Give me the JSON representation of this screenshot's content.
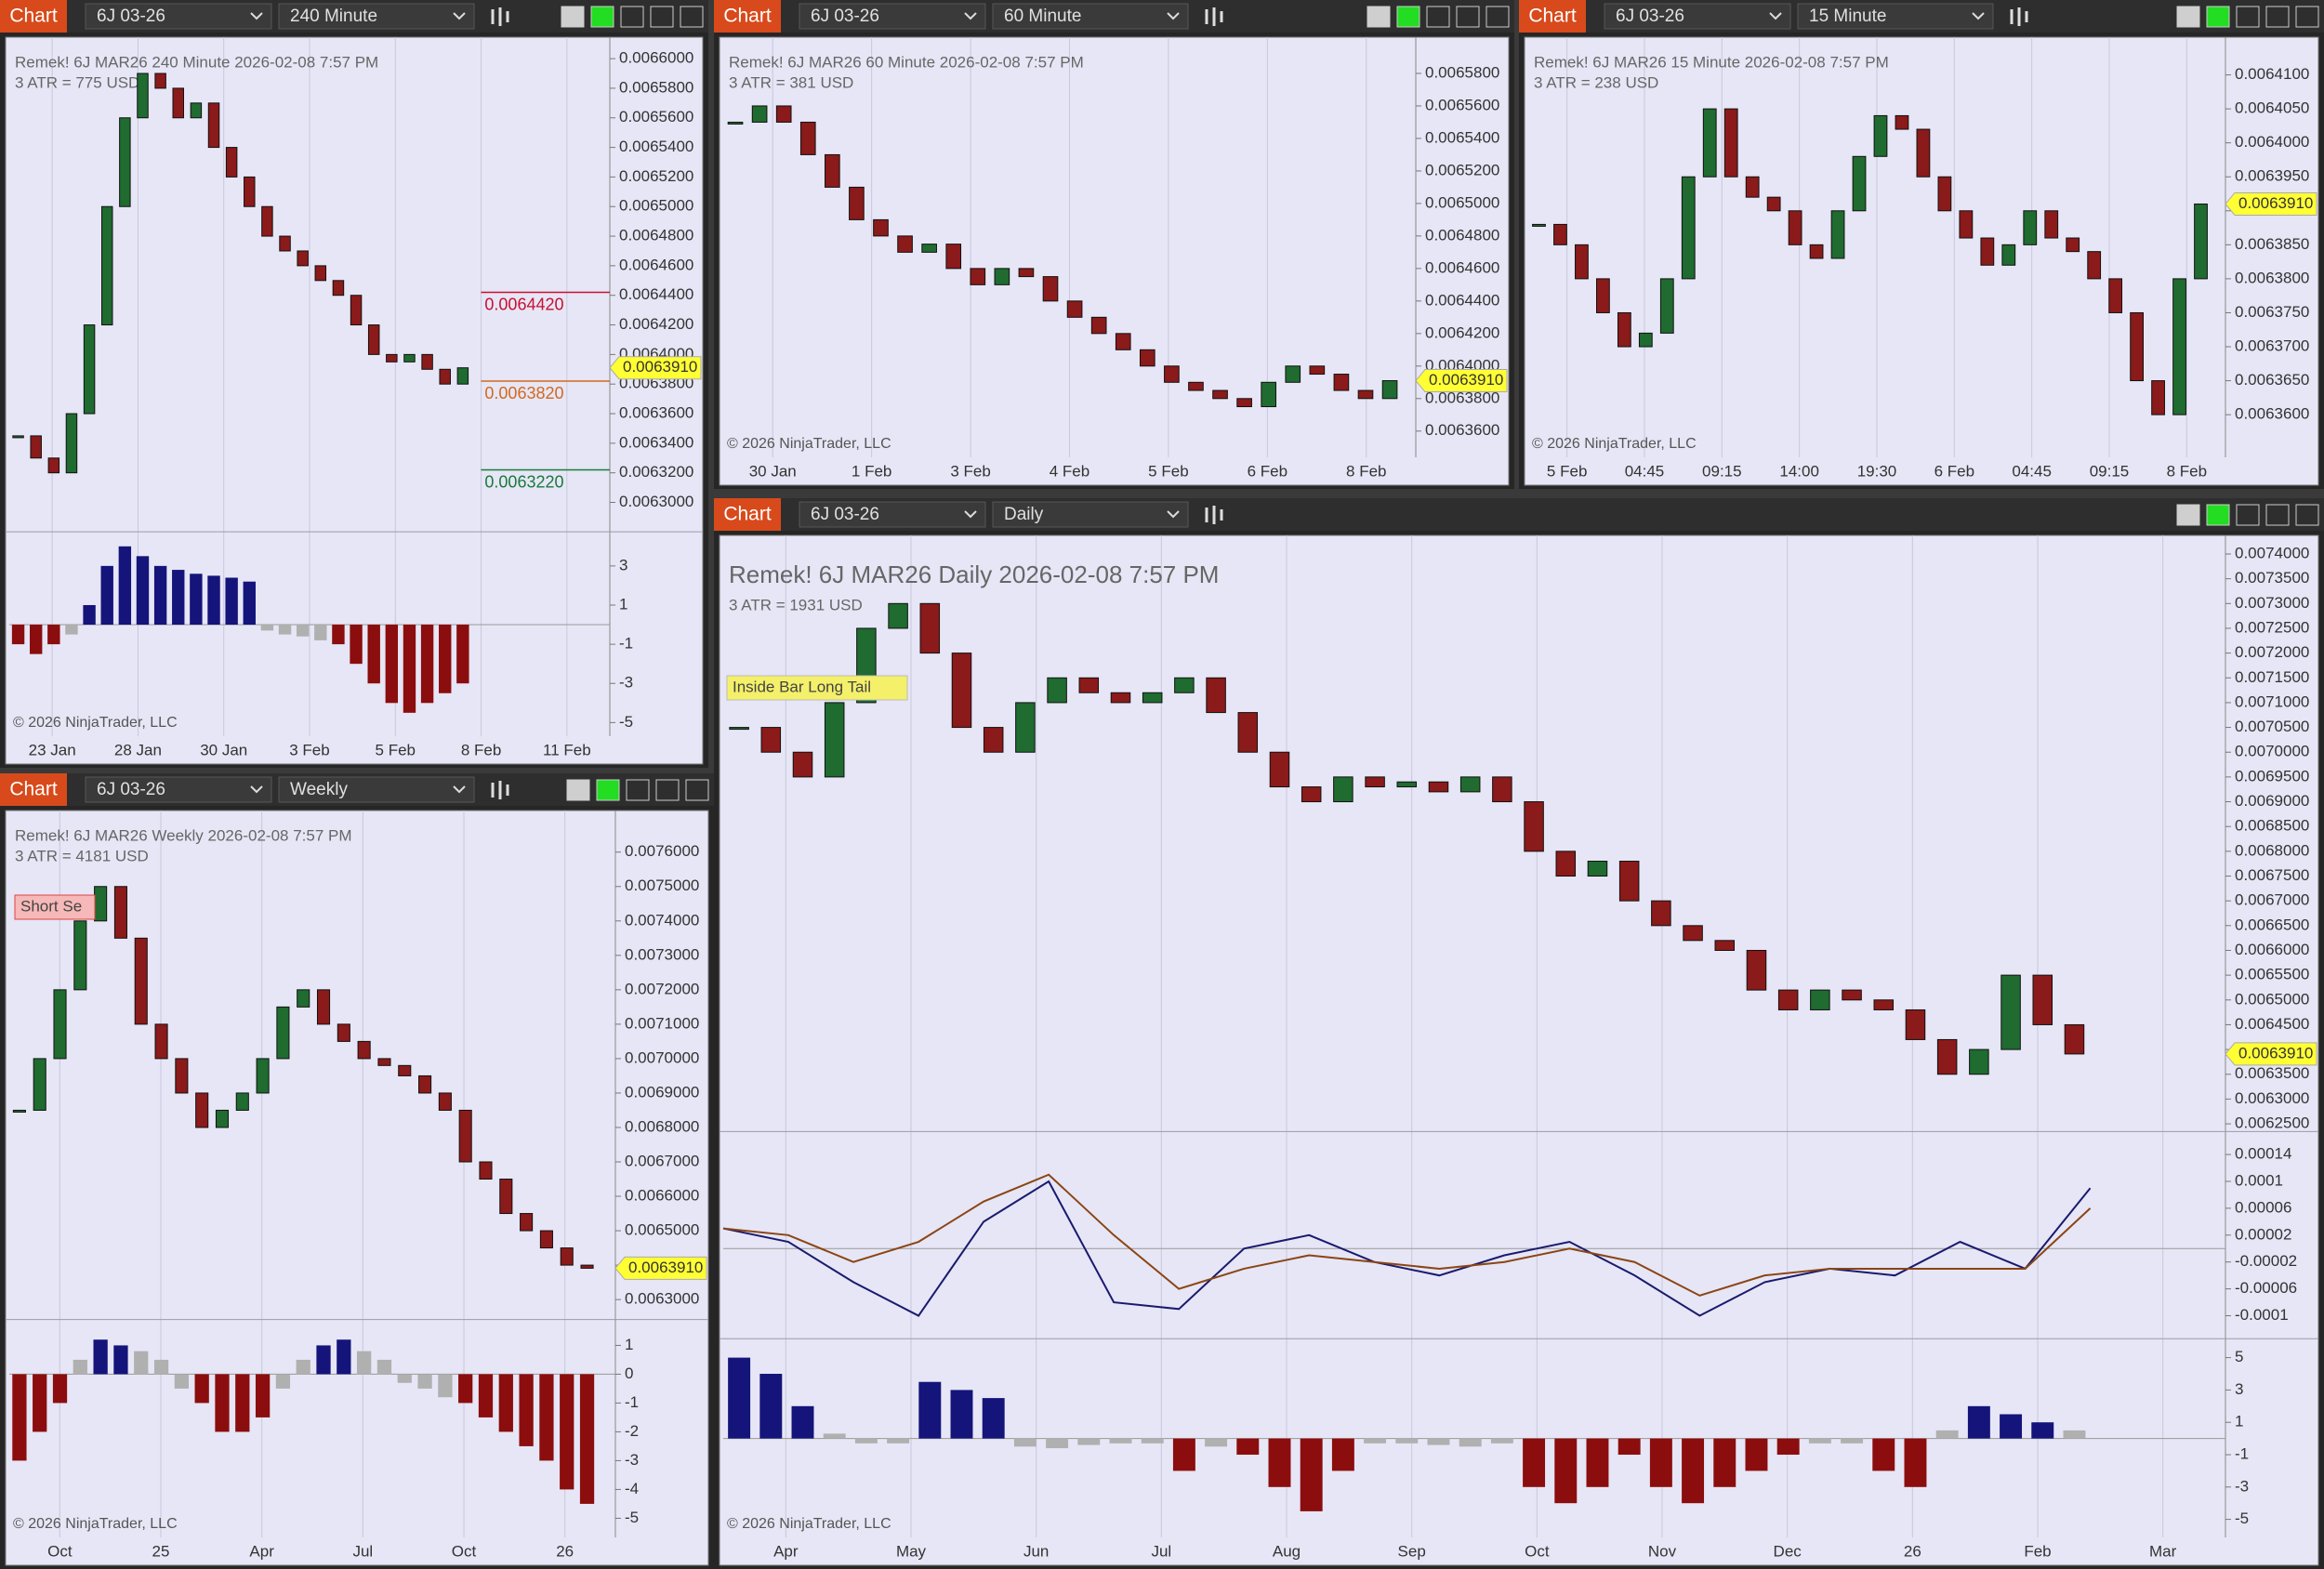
{
  "windows": [
    {
      "tab": "Chart",
      "instrument": "6J 03-26",
      "period": "240 Minute",
      "header": "Remek!  6J MAR26  240 Minute  2026-02-08 7:57 PM",
      "atr": "3 ATR = 775 USD",
      "price_axis": {
        "lim": [
          0.006282,
          0.006612
        ],
        "ticks": [
          {
            "value": 0.0066,
            "label": "0.0066000"
          },
          {
            "value": 0.00658,
            "label": "0.0065800"
          },
          {
            "value": 0.00656,
            "label": "0.0065600"
          },
          {
            "value": 0.00654,
            "label": "0.0065400"
          },
          {
            "value": 0.00652,
            "label": "0.0065200"
          },
          {
            "value": 0.0065,
            "label": "0.0065000"
          },
          {
            "value": 0.00648,
            "label": "0.0064800"
          },
          {
            "value": 0.00646,
            "label": "0.0064600"
          },
          {
            "value": 0.00644,
            "label": "0.0064400"
          },
          {
            "value": 0.00642,
            "label": "0.0064200"
          },
          {
            "value": 0.0064,
            "label": "0.0064000"
          },
          {
            "value": 0.00638,
            "label": "0.0063800"
          },
          {
            "value": 0.00636,
            "label": "0.0063600"
          },
          {
            "value": 0.00634,
            "label": "0.0063400"
          },
          {
            "value": 0.00632,
            "label": "0.0063200"
          },
          {
            "value": 0.0063,
            "label": "0.0063000"
          }
        ]
      },
      "closes": [
        0.006345,
        0.00633,
        0.00632,
        0.00636,
        0.00642,
        0.0065,
        0.00656,
        0.00659,
        0.00658,
        0.00656,
        0.00657,
        0.00654,
        0.00652,
        0.0065,
        0.00648,
        0.00647,
        0.00646,
        0.00645,
        0.00644,
        0.00642,
        0.0064,
        0.006395,
        0.0064,
        0.00639,
        0.00638,
        0.006391
      ],
      "last": {
        "value": 0.006391,
        "label": "0.0063910"
      },
      "levels": [
        {
          "value": 0.006442,
          "label": "0.0064420",
          "color": "#c8102e"
        },
        {
          "value": 0.006382,
          "label": "0.0063820",
          "color": "#d2691e"
        },
        {
          "value": 0.006322,
          "label": "0.0063220",
          "color": "#1a7a3a"
        }
      ],
      "x_labels": [
        "23 Jan",
        "28 Jan",
        "30 Jan",
        "3 Feb",
        "5 Feb",
        "8 Feb",
        "11 Feb"
      ],
      "copyright": "© 2026 NinjaTrader, LLC",
      "panels": [
        {
          "lim": [
            -5.6,
            4.6
          ],
          "ticks": [
            3,
            1,
            -1,
            -3,
            -5
          ],
          "hist": [
            -1,
            -1.5,
            -1,
            -0.5,
            1,
            3,
            4,
            3.5,
            3,
            2.8,
            2.6,
            2.5,
            2.4,
            2.2,
            -0.3,
            -0.5,
            -0.6,
            -0.8,
            -1,
            -2,
            -3,
            -4,
            -4.5,
            -4,
            -3.5,
            -3
          ]
        }
      ]
    },
    {
      "tab": "Chart",
      "instrument": "6J 03-26",
      "period": "60 Minute",
      "header": "Remek!  6J MAR26  60 Minute  2026-02-08 7:57 PM",
      "atr": "3 ATR = 381 USD",
      "price_axis": {
        "lim": [
          0.006345,
          0.0066
        ],
        "ticks": [
          {
            "value": 0.00658,
            "label": "0.0065800"
          },
          {
            "value": 0.00656,
            "label": "0.0065600"
          },
          {
            "value": 0.00654,
            "label": "0.0065400"
          },
          {
            "value": 0.00652,
            "label": "0.0065200"
          },
          {
            "value": 0.0065,
            "label": "0.0065000"
          },
          {
            "value": 0.00648,
            "label": "0.0064800"
          },
          {
            "value": 0.00646,
            "label": "0.0064600"
          },
          {
            "value": 0.00644,
            "label": "0.0064400"
          },
          {
            "value": 0.00642,
            "label": "0.0064200"
          },
          {
            "value": 0.0064,
            "label": "0.0064000"
          },
          {
            "value": 0.00638,
            "label": "0.0063800"
          },
          {
            "value": 0.00636,
            "label": "0.0063600"
          }
        ]
      },
      "closes": [
        0.00655,
        0.00656,
        0.00655,
        0.00653,
        0.00651,
        0.00649,
        0.00648,
        0.00647,
        0.006475,
        0.00646,
        0.00645,
        0.00646,
        0.006455,
        0.00644,
        0.00643,
        0.00642,
        0.00641,
        0.0064,
        0.00639,
        0.006385,
        0.00638,
        0.006375,
        0.00639,
        0.0064,
        0.006395,
        0.006385,
        0.00638,
        0.006391
      ],
      "last": {
        "value": 0.006391,
        "label": "0.0063910"
      },
      "x_labels": [
        "30 Jan",
        "1 Feb",
        "3 Feb",
        "4 Feb",
        "5 Feb",
        "6 Feb",
        "8 Feb"
      ],
      "copyright": "© 2026 NinjaTrader, LLC"
    },
    {
      "tab": "Chart",
      "instrument": "6J 03-26",
      "period": "15 Minute",
      "header": "Remek!  6J MAR26  15 Minute  2026-02-08 7:57 PM",
      "atr": "3 ATR = 238 USD",
      "price_axis": {
        "lim": [
          0.006354,
          0.006415
        ],
        "ticks": [
          {
            "value": 0.00641,
            "label": "0.0064100"
          },
          {
            "value": 0.006405,
            "label": "0.0064050"
          },
          {
            "value": 0.0064,
            "label": "0.0064000"
          },
          {
            "value": 0.006395,
            "label": "0.0063950"
          },
          {
            "value": 0.00639,
            "label": "0.0063900"
          },
          {
            "value": 0.006385,
            "label": "0.0063850"
          },
          {
            "value": 0.00638,
            "label": "0.0063800"
          },
          {
            "value": 0.006375,
            "label": "0.0063750"
          },
          {
            "value": 0.00637,
            "label": "0.0063700"
          },
          {
            "value": 0.006365,
            "label": "0.0063650"
          },
          {
            "value": 0.00636,
            "label": "0.0063600"
          }
        ]
      },
      "closes": [
        0.006388,
        0.006385,
        0.00638,
        0.006375,
        0.00637,
        0.006372,
        0.00638,
        0.006395,
        0.006405,
        0.006395,
        0.006392,
        0.00639,
        0.006385,
        0.006383,
        0.00639,
        0.006398,
        0.006404,
        0.006402,
        0.006395,
        0.00639,
        0.006386,
        0.006382,
        0.006385,
        0.00639,
        0.006386,
        0.006384,
        0.00638,
        0.006375,
        0.006365,
        0.00636,
        0.00638,
        0.006391
      ],
      "last": {
        "value": 0.006391,
        "label": "0.0063910"
      },
      "x_labels": [
        "5 Feb",
        "04:45",
        "09:15",
        "14:00",
        "19:30",
        "6 Feb",
        "04:45",
        "09:15",
        "8 Feb"
      ],
      "copyright": "© 2026 NinjaTrader, LLC"
    },
    {
      "tab": "Chart",
      "instrument": "6J 03-26",
      "period": "Weekly",
      "header": "Remek!  6J MAR26  Weekly  2026-02-08 7:57 PM",
      "atr": "3 ATR = 4181 USD",
      "tag": "Short Se",
      "price_axis": {
        "lim": [
          0.00625,
          0.00771
        ],
        "ticks": [
          {
            "value": 0.0076,
            "label": "0.0076000"
          },
          {
            "value": 0.0075,
            "label": "0.0075000"
          },
          {
            "value": 0.0074,
            "label": "0.0074000"
          },
          {
            "value": 0.0073,
            "label": "0.0073000"
          },
          {
            "value": 0.0072,
            "label": "0.0072000"
          },
          {
            "value": 0.0071,
            "label": "0.0071000"
          },
          {
            "value": 0.007,
            "label": "0.0070000"
          },
          {
            "value": 0.0069,
            "label": "0.0069000"
          },
          {
            "value": 0.0068,
            "label": "0.0068000"
          },
          {
            "value": 0.0067,
            "label": "0.0067000"
          },
          {
            "value": 0.0066,
            "label": "0.0066000"
          },
          {
            "value": 0.0065,
            "label": "0.0065000"
          },
          {
            "value": 0.0064,
            "label": "0.0064000"
          },
          {
            "value": 0.0063,
            "label": "0.0063000"
          }
        ]
      },
      "closes": [
        0.00685,
        0.007,
        0.0072,
        0.0074,
        0.0075,
        0.00735,
        0.0071,
        0.007,
        0.0069,
        0.0068,
        0.00685,
        0.0069,
        0.007,
        0.00715,
        0.0072,
        0.0071,
        0.00705,
        0.007,
        0.00698,
        0.00695,
        0.0069,
        0.00685,
        0.0067,
        0.00665,
        0.00655,
        0.0065,
        0.00645,
        0.0064,
        0.006391
      ],
      "last": {
        "value": 0.006391,
        "label": "0.0063910"
      },
      "x_labels": [
        "Oct",
        "25",
        "Apr",
        "Jul",
        "Oct",
        "26"
      ],
      "copyright": "© 2026 NinjaTrader, LLC",
      "panels": [
        {
          "lim": [
            -5.6,
            1.8
          ],
          "ticks": [
            1,
            0,
            -1,
            -2,
            -3,
            -4,
            -5
          ],
          "hist": [
            -3,
            -2,
            -1,
            0.5,
            1.2,
            1,
            0.8,
            0.5,
            -0.5,
            -1,
            -2,
            -2,
            -1.5,
            -0.5,
            0.5,
            1,
            1.2,
            0.8,
            0.5,
            -0.3,
            -0.5,
            -0.8,
            -1,
            -1.5,
            -2,
            -2.5,
            -3,
            -4,
            -4.5
          ]
        }
      ]
    },
    {
      "tab": "Chart",
      "instrument": "6J 03-26",
      "period": "Daily",
      "header": "Remek!  6J MAR26  Daily  2026-02-08 7:57 PM",
      "atr": "3 ATR = 1931 USD",
      "tag": "Inside Bar Long Tail",
      "price_axis": {
        "lim": [
          0.00624,
          0.00743
        ],
        "ticks": [
          {
            "value": 0.0074,
            "label": "0.0074000"
          },
          {
            "value": 0.00735,
            "label": "0.0073500"
          },
          {
            "value": 0.0073,
            "label": "0.0073000"
          },
          {
            "value": 0.00725,
            "label": "0.0072500"
          },
          {
            "value": 0.0072,
            "label": "0.0072000"
          },
          {
            "value": 0.00715,
            "label": "0.0071500"
          },
          {
            "value": 0.0071,
            "label": "0.0071000"
          },
          {
            "value": 0.00705,
            "label": "0.0070500"
          },
          {
            "value": 0.007,
            "label": "0.0070000"
          },
          {
            "value": 0.00695,
            "label": "0.0069500"
          },
          {
            "value": 0.0069,
            "label": "0.0069000"
          },
          {
            "value": 0.00685,
            "label": "0.0068500"
          },
          {
            "value": 0.0068,
            "label": "0.0068000"
          },
          {
            "value": 0.00675,
            "label": "0.0067500"
          },
          {
            "value": 0.0067,
            "label": "0.0067000"
          },
          {
            "value": 0.00665,
            "label": "0.0066500"
          },
          {
            "value": 0.0066,
            "label": "0.0066000"
          },
          {
            "value": 0.00655,
            "label": "0.0065500"
          },
          {
            "value": 0.0065,
            "label": "0.0065000"
          },
          {
            "value": 0.00645,
            "label": "0.0064500"
          },
          {
            "value": 0.0064,
            "label": "0.0064000"
          },
          {
            "value": 0.00635,
            "label": "0.0063500"
          },
          {
            "value": 0.0063,
            "label": "0.0063000"
          },
          {
            "value": 0.00625,
            "label": "0.0062500"
          }
        ]
      },
      "closes": [
        0.00705,
        0.007,
        0.00695,
        0.0071,
        0.00725,
        0.0073,
        0.0072,
        0.00705,
        0.007,
        0.0071,
        0.00715,
        0.00712,
        0.0071,
        0.00712,
        0.00715,
        0.00708,
        0.007,
        0.00693,
        0.0069,
        0.00695,
        0.00693,
        0.00694,
        0.00692,
        0.00695,
        0.0069,
        0.0068,
        0.00675,
        0.00678,
        0.0067,
        0.00665,
        0.00662,
        0.0066,
        0.00652,
        0.00648,
        0.00652,
        0.0065,
        0.00648,
        0.00642,
        0.00635,
        0.0064,
        0.00655,
        0.00645,
        0.006391
      ],
      "last": {
        "value": 0.006391,
        "label": "0.0063910"
      },
      "x_labels": [
        "Apr",
        "May",
        "Jun",
        "Jul",
        "Aug",
        "Sep",
        "Oct",
        "Nov",
        "Dec",
        "26",
        "Feb",
        "Mar"
      ],
      "copyright": "© 2026 NinjaTrader, LLC",
      "panels": [
        {
          "lim": [
            -0.00013,
            0.00017
          ],
          "ticks": [
            0.00014,
            0.0001,
            6e-05,
            2e-05,
            -2e-05,
            -6e-05,
            -0.0001
          ],
          "lines": [
            {
              "color": "#1a1a6e",
              "values": [
                3e-05,
                1e-05,
                -5e-05,
                -0.0001,
                4e-05,
                0.0001,
                -8e-05,
                -9e-05,
                0,
                2e-05,
                -2e-05,
                -4e-05,
                -1e-05,
                1e-05,
                -4e-05,
                -0.0001,
                -5e-05,
                -3e-05,
                -4e-05,
                1e-05,
                -3e-05,
                9e-05
              ]
            },
            {
              "color": "#8b4513",
              "values": [
                3e-05,
                2e-05,
                -2e-05,
                1e-05,
                7e-05,
                0.00011,
                2e-05,
                -6e-05,
                -3e-05,
                -1e-05,
                -2e-05,
                -3e-05,
                -2e-05,
                0,
                -2e-05,
                -7e-05,
                -4e-05,
                -3e-05,
                -3e-05,
                -3e-05,
                -3e-05,
                6e-05
              ]
            }
          ]
        },
        {
          "lim": [
            -6,
            6
          ],
          "ticks": [
            5,
            3,
            1,
            -1,
            -3,
            -5
          ],
          "hist": [
            5,
            4,
            2,
            0.3,
            -0.3,
            -0.3,
            3.5,
            3,
            2.5,
            -0.5,
            -0.6,
            -0.4,
            -0.3,
            -0.3,
            -2,
            -0.5,
            -1,
            -3,
            -4.5,
            -2,
            -0.3,
            -0.3,
            -0.4,
            -0.5,
            -0.3,
            -3,
            -4,
            -3,
            -1,
            -3,
            -4,
            -3,
            -2,
            -1,
            -0.3,
            -0.3,
            -2,
            -3,
            0.5,
            2,
            1.5,
            1,
            0.5
          ]
        }
      ]
    }
  ]
}
